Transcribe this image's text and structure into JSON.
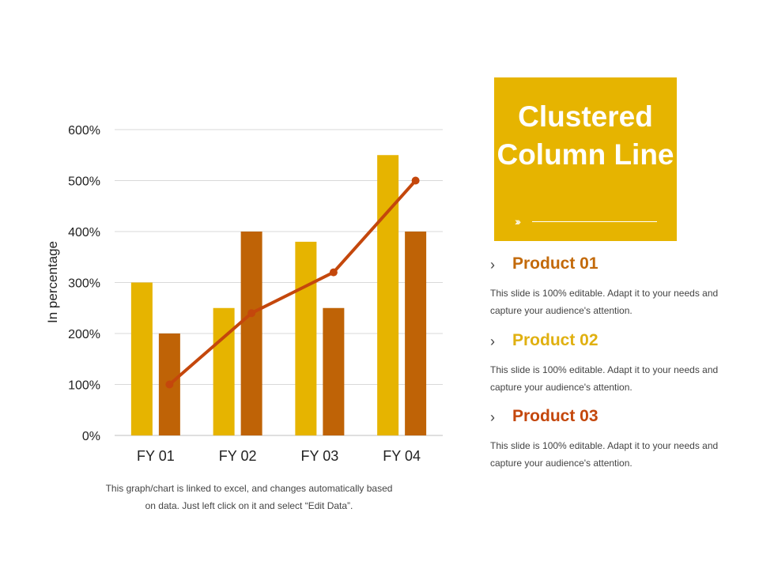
{
  "chart_data": {
    "type": "bar",
    "categories": [
      "FY 01",
      "FY 02",
      "FY 03",
      "FY 04"
    ],
    "series": [
      {
        "type": "bar",
        "values": [
          300,
          250,
          380,
          550
        ],
        "color": "#e6b400"
      },
      {
        "type": "bar",
        "values": [
          200,
          400,
          250,
          400
        ],
        "color": "#bf6306"
      },
      {
        "type": "line",
        "values": [
          100,
          240,
          320,
          500
        ],
        "color": "#c4470c"
      }
    ],
    "ylabel": "In percentage",
    "ylim": [
      0,
      600
    ],
    "yticks": [
      0,
      100,
      200,
      300,
      400,
      500,
      600
    ],
    "ytick_labels": [
      "0%",
      "100%",
      "200%",
      "300%",
      "400%",
      "500%",
      "600%"
    ],
    "grid": true
  },
  "note": "This graph/chart is linked to excel, and changes automatically based on data. Just left click on it and select “Edit Data”.",
  "title": "Clustered Column Line",
  "products": [
    {
      "name": "Product 01",
      "color": "#c36a0b",
      "desc": "This slide is 100% editable. Adapt it to your needs and capture your audience's attention."
    },
    {
      "name": "Product 02",
      "color": "#e0b010",
      "desc": "This slide is 100% editable. Adapt it to your needs and capture your audience's attention."
    },
    {
      "name": "Product 03",
      "color": "#c4470c",
      "desc": "This slide is 100% editable. Adapt it to your needs and capture your audience's attention."
    }
  ]
}
